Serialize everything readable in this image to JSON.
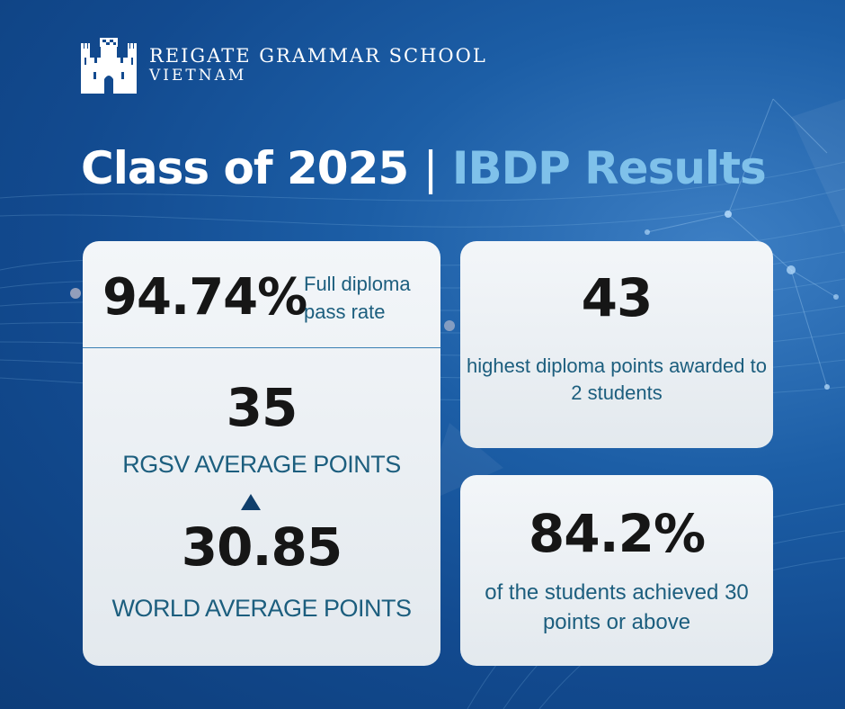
{
  "school": {
    "name_line1": "REIGATE GRAMMAR SCHOOL",
    "name_line2": "VIETNAM",
    "logo_icon": "castle-icon"
  },
  "headline": {
    "part1": "Class of 2025",
    "separator": "|",
    "part2": "IBDP Results"
  },
  "stats": {
    "pass_rate": {
      "value": "94.74%",
      "label": "Full diploma pass rate"
    },
    "rgsv_average": {
      "value": "35",
      "label": "RGSV AVERAGE POINTS"
    },
    "comparison_icon": "triangle-up-icon",
    "world_average": {
      "value": "30.85",
      "label": "WORLD AVERAGE POINTS"
    },
    "highest_points": {
      "value": "43",
      "label": "highest diploma points awarded to 2 students"
    },
    "thirty_plus": {
      "value": "84.2%",
      "label": "of the students achieved 30 points or above"
    }
  },
  "colors": {
    "background": "#124a8f",
    "headline_white": "#ffffff",
    "headline_accent": "#7fc1ea",
    "card": "#eef2f5",
    "value_text": "#161616",
    "label_text": "#1c5e7e",
    "divider": "#3a7fb3",
    "triangle": "#0f3e6b"
  }
}
